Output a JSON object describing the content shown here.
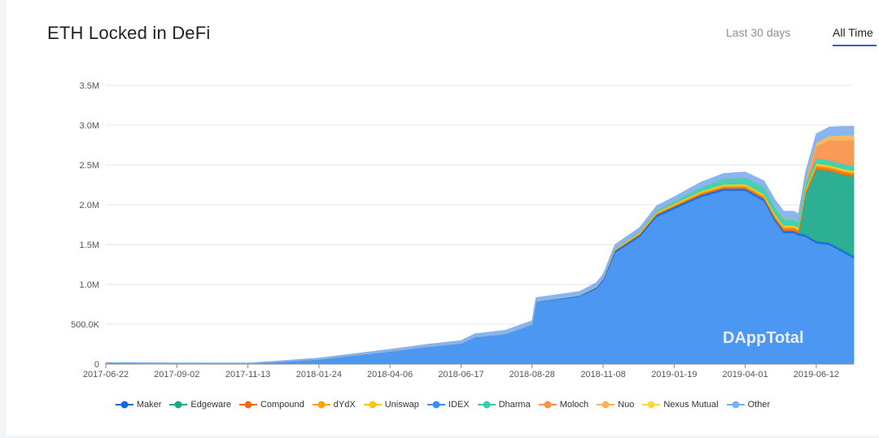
{
  "header": {
    "title": "ETH Locked in DeFi",
    "tabs": [
      {
        "label": "Last 30 days",
        "active": false
      },
      {
        "label": "All Time",
        "active": true
      }
    ]
  },
  "watermark": "DAppTotal",
  "colors": {
    "Maker": "#1565e0",
    "Edgeware": "#1aa88a",
    "Compound": "#f06a13",
    "dYdX": "#f5a40a",
    "Uniswap": "#f7c61a",
    "IDEX": "#3c8ef0",
    "Dharma": "#34cdb0",
    "Moloch": "#f7924a",
    "Nuo": "#f7b25a",
    "Nexus Mutual": "#f6d74a",
    "Other": "#7fb0ee"
  },
  "chart_data": {
    "type": "area",
    "title": "ETH Locked in DeFi",
    "stacked": true,
    "grid": true,
    "legend_position": "bottom",
    "ylim": [
      0,
      3500000
    ],
    "y_ticks": [
      "0",
      "500.0K",
      "1.0M",
      "1.5M",
      "2.0M",
      "2.5M",
      "3.0M",
      "3.5M"
    ],
    "y_tick_values": [
      0,
      500000,
      1000000,
      1500000,
      2000000,
      2500000,
      3000000,
      3500000
    ],
    "x_ticks": [
      "2017-06-22",
      "2017-09-02",
      "2017-11-13",
      "2018-01-24",
      "2018-04-06",
      "2018-06-17",
      "2018-08-28",
      "2018-11-08",
      "2019-01-19",
      "2019-04-01",
      "2019-06-12"
    ],
    "x": [
      "2017-06-22",
      "2017-09-02",
      "2017-11-13",
      "2017-12-15",
      "2018-01-24",
      "2018-03-01",
      "2018-04-06",
      "2018-05-15",
      "2018-06-17",
      "2018-07-01",
      "2018-08-01",
      "2018-08-28",
      "2018-09-01",
      "2018-10-15",
      "2018-11-01",
      "2018-11-08",
      "2018-11-20",
      "2018-12-15",
      "2019-01-01",
      "2019-01-19",
      "2019-02-15",
      "2019-03-10",
      "2019-04-01",
      "2019-04-20",
      "2019-05-01",
      "2019-05-10",
      "2019-05-20",
      "2019-05-25",
      "2019-06-01",
      "2019-06-12",
      "2019-06-25",
      "2019-07-10",
      "2019-07-20"
    ],
    "series": [
      {
        "name": "IDEX",
        "values": [
          15000,
          10000,
          8000,
          30000,
          60000,
          110000,
          160000,
          220000,
          260000,
          340000,
          380000,
          500000,
          780000,
          850000,
          950000,
          1050000,
          1400000,
          1600000,
          1850000,
          1950000,
          2100000,
          2180000,
          2180000,
          2050000,
          1800000,
          1650000,
          1650000,
          1620000,
          1600000,
          1520000,
          1500000,
          1400000,
          1330000
        ]
      },
      {
        "name": "Maker",
        "values": [
          0,
          0,
          0,
          0,
          0,
          0,
          0,
          0,
          0,
          0,
          0,
          0,
          5000,
          10000,
          15000,
          20000,
          25000,
          25000,
          25000,
          25000,
          25000,
          25000,
          25000,
          25000,
          25000,
          25000,
          25000,
          25000,
          25000,
          25000,
          25000,
          25000,
          25000
        ]
      },
      {
        "name": "Edgeware",
        "values": [
          0,
          0,
          0,
          0,
          0,
          0,
          0,
          0,
          0,
          0,
          0,
          0,
          0,
          0,
          0,
          0,
          0,
          0,
          0,
          0,
          0,
          0,
          0,
          0,
          0,
          0,
          0,
          0,
          500000,
          900000,
          900000,
          950000,
          1000000
        ]
      },
      {
        "name": "Compound",
        "values": [
          0,
          0,
          0,
          0,
          0,
          0,
          0,
          0,
          0,
          0,
          0,
          0,
          0,
          0,
          0,
          0,
          5000,
          8000,
          10000,
          12000,
          15000,
          18000,
          20000,
          22000,
          25000,
          28000,
          30000,
          30000,
          35000,
          35000,
          35000,
          35000,
          35000
        ]
      },
      {
        "name": "dYdX",
        "values": [
          0,
          0,
          0,
          0,
          0,
          0,
          0,
          0,
          0,
          0,
          0,
          0,
          0,
          0,
          0,
          0,
          5000,
          8000,
          10000,
          12000,
          15000,
          15000,
          15000,
          15000,
          15000,
          15000,
          15000,
          15000,
          15000,
          15000,
          15000,
          15000,
          15000
        ]
      },
      {
        "name": "Uniswap",
        "values": [
          0,
          0,
          0,
          0,
          0,
          0,
          0,
          0,
          0,
          0,
          0,
          0,
          0,
          0,
          5000,
          8000,
          10000,
          12000,
          14000,
          16000,
          18000,
          20000,
          22000,
          24000,
          25000,
          25000,
          25000,
          25000,
          25000,
          25000,
          25000,
          25000,
          25000
        ]
      },
      {
        "name": "Dharma",
        "values": [
          0,
          0,
          0,
          0,
          0,
          0,
          0,
          0,
          0,
          0,
          0,
          0,
          0,
          0,
          0,
          0,
          5000,
          10000,
          20000,
          30000,
          50000,
          70000,
          80000,
          90000,
          90000,
          85000,
          80000,
          75000,
          70000,
          65000,
          60000,
          60000,
          60000
        ]
      },
      {
        "name": "Moloch",
        "values": [
          0,
          0,
          0,
          0,
          0,
          0,
          0,
          0,
          0,
          0,
          0,
          0,
          0,
          0,
          0,
          0,
          0,
          0,
          0,
          0,
          0,
          0,
          0,
          0,
          0,
          0,
          0,
          0,
          0,
          150000,
          250000,
          300000,
          320000
        ]
      },
      {
        "name": "Nuo",
        "values": [
          0,
          0,
          0,
          0,
          0,
          0,
          0,
          0,
          0,
          0,
          0,
          0,
          0,
          0,
          0,
          0,
          0,
          0,
          0,
          0,
          0,
          0,
          0,
          0,
          0,
          0,
          0,
          0,
          30000,
          40000,
          50000,
          60000,
          60000
        ]
      },
      {
        "name": "Nexus Mutual",
        "values": [
          0,
          0,
          0,
          0,
          0,
          0,
          0,
          0,
          0,
          0,
          0,
          0,
          0,
          0,
          0,
          0,
          0,
          0,
          0,
          0,
          0,
          0,
          0,
          0,
          5000,
          5000,
          5000,
          5000,
          5000,
          5000,
          5000,
          5000,
          5000
        ]
      },
      {
        "name": "Other",
        "values": [
          5000,
          5000,
          5000,
          10000,
          15000,
          20000,
          25000,
          30000,
          35000,
          40000,
          45000,
          45000,
          50000,
          50000,
          50000,
          50000,
          50000,
          50000,
          55000,
          55000,
          60000,
          65000,
          70000,
          75000,
          80000,
          85000,
          90000,
          90000,
          100000,
          110000,
          110000,
          110000,
          110000
        ]
      }
    ]
  }
}
